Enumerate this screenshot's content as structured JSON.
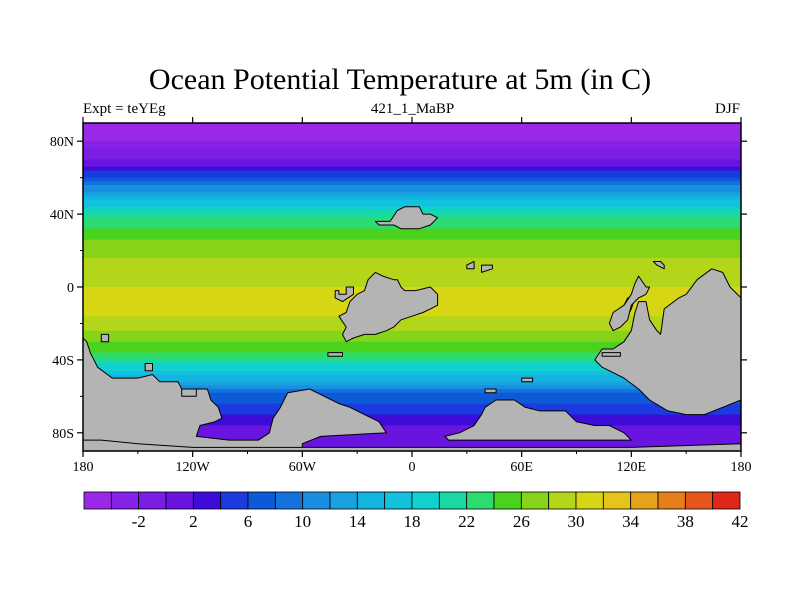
{
  "chart_data": {
    "type": "heatmap",
    "title": "Ocean Potential Temperature at 5m (in C)",
    "left_string": "Expt = teYEg",
    "center_string": "421_1_MaBP",
    "right_string": "DJF",
    "projection": "cylindrical equidistant",
    "xlim": [
      -180,
      180
    ],
    "ylim": [
      -90,
      90
    ],
    "x_ticks": [
      {
        "value": -180,
        "label": "180"
      },
      {
        "value": -120,
        "label": "120W"
      },
      {
        "value": -60,
        "label": "60W"
      },
      {
        "value": 0,
        "label": "0"
      },
      {
        "value": 60,
        "label": "60E"
      },
      {
        "value": 120,
        "label": "120E"
      },
      {
        "value": 180,
        "label": "180"
      }
    ],
    "y_ticks": [
      {
        "value": 80,
        "label": "80N"
      },
      {
        "value": 40,
        "label": "40N"
      },
      {
        "value": 0,
        "label": "0"
      },
      {
        "value": -40,
        "label": "40S"
      },
      {
        "value": -80,
        "label": "80S"
      }
    ],
    "zonal_mean_temperature": {
      "lat": [
        90,
        80,
        70,
        60,
        50,
        40,
        30,
        20,
        10,
        0,
        -10,
        -20,
        -30,
        -40,
        -50,
        -60,
        -70,
        -80,
        -90
      ],
      "values": [
        -3,
        -2,
        2,
        8,
        16,
        23,
        27,
        29,
        31,
        32,
        33,
        31,
        28,
        24,
        17,
        9,
        6,
        3,
        2
      ]
    },
    "colorbar": {
      "levels": [
        -4,
        -2,
        0,
        2,
        4,
        6,
        8,
        10,
        12,
        14,
        16,
        18,
        20,
        22,
        24,
        26,
        28,
        30,
        32,
        34,
        36,
        38,
        40,
        42
      ],
      "labels": [
        "-2",
        "2",
        "6",
        "10",
        "14",
        "18",
        "22",
        "26",
        "30",
        "34",
        "38",
        "42"
      ],
      "colors": [
        "#9b28e6",
        "#8622e8",
        "#7a1ee3",
        "#6a14e0",
        "#3d0cd8",
        "#1b3ae0",
        "#0d5ad8",
        "#1472dc",
        "#1a8ee0",
        "#1aa2e0",
        "#14b4e0",
        "#12c2dc",
        "#10d0d0",
        "#1ad8a4",
        "#2cdc70",
        "#4ad21e",
        "#86d41a",
        "#b4d61a",
        "#d6d614",
        "#e6c41a",
        "#e6a21a",
        "#e67e1a",
        "#e6561a",
        "#e0281a"
      ]
    },
    "land_color": "#b4b4b4"
  }
}
